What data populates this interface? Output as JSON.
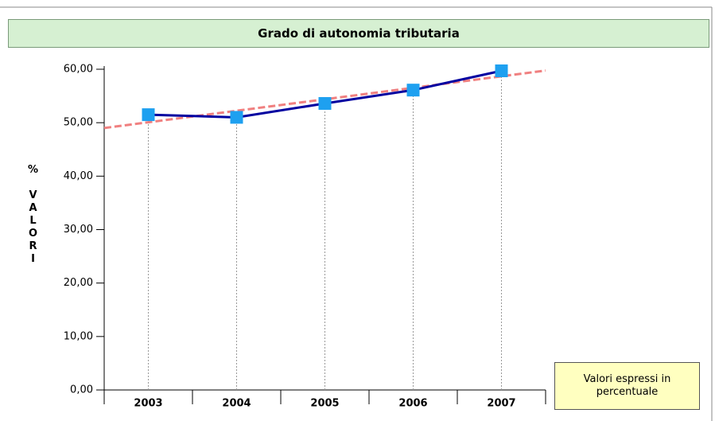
{
  "chart_data": {
    "type": "line",
    "title": "Grado di autonomia tributaria",
    "y_label": "% VALORI",
    "categories": [
      "2003",
      "2004",
      "2005",
      "2006",
      "2007"
    ],
    "series": [
      {
        "name": "Grado di autonomia tributaria",
        "color": "#0000a0",
        "marker_color": "#1ea0f0",
        "values": [
          51.5,
          51.0,
          53.6,
          56.1,
          59.7
        ]
      }
    ],
    "trendline": {
      "type": "linear",
      "color": "#f08080"
    },
    "ylim": [
      0,
      60
    ],
    "yticks": [
      {
        "value": 0,
        "label": "0,00"
      },
      {
        "value": 10,
        "label": "10,00"
      },
      {
        "value": 20,
        "label": "20,00"
      },
      {
        "value": 30,
        "label": "30,00"
      },
      {
        "value": 40,
        "label": "40,00"
      },
      {
        "value": 50,
        "label": "50,00"
      },
      {
        "value": 60,
        "label": "60,00"
      }
    ],
    "drop_lines": true,
    "annotation": "Valori espressi in percentuale"
  }
}
